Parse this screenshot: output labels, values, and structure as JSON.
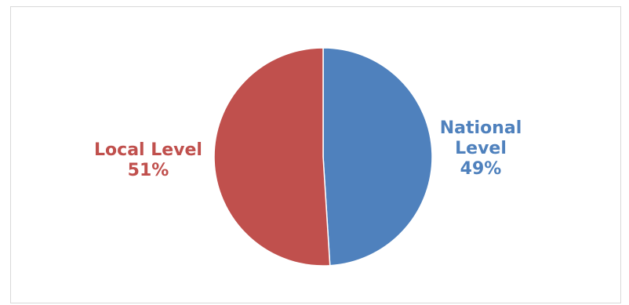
{
  "chart_data": {
    "type": "pie",
    "slices": [
      {
        "label": "National Level",
        "label_lines": [
          "National",
          "Level"
        ],
        "value": 49,
        "display": "49%",
        "color": "#4f81bd"
      },
      {
        "label": "Local Level",
        "label_lines": [
          "Local Level"
        ],
        "value": 51,
        "display": "51%",
        "color": "#c0504d"
      }
    ],
    "start_angle": "12 o'clock",
    "direction": "clockwise",
    "legend": "none",
    "data_labels": "outside, category name and percentage"
  }
}
